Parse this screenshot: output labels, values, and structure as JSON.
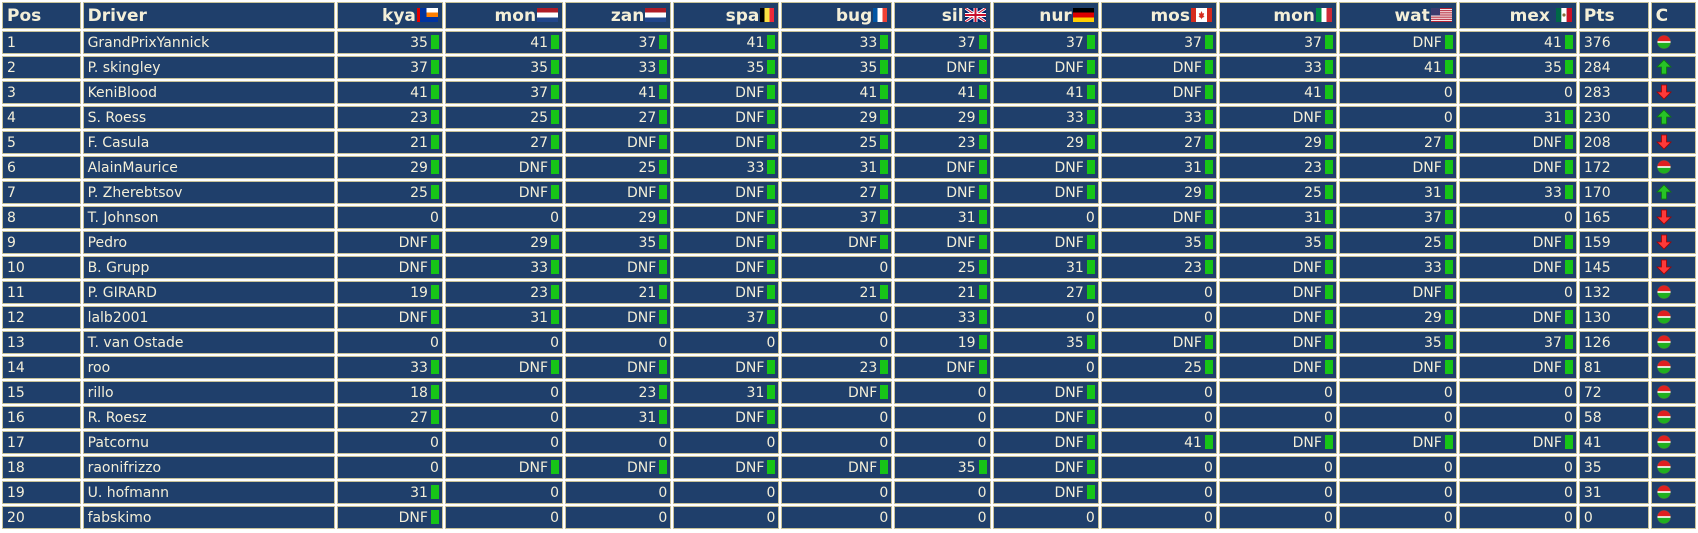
{
  "headers": {
    "pos": "Pos",
    "driver": "Driver",
    "races": [
      "kya",
      "mon",
      "zan",
      "spa",
      "bug",
      "sil",
      "nur",
      "mos",
      "mon",
      "wat",
      "mex"
    ],
    "pts": "Pts",
    "change": "C"
  },
  "race_flags": [
    "netherlands-antilles-flag",
    "netherlands-flag",
    "netherlands-flag",
    "belgium-flag",
    "france-flag",
    "united-kingdom-flag",
    "germany-flag",
    "canada-flag",
    "italy-flag",
    "united-states-flag",
    "mexico-flag"
  ],
  "rows": [
    {
      "pos": "1",
      "driver": "GrandPrixYannick",
      "results": [
        "35",
        "41",
        "37",
        "41",
        "33",
        "37",
        "37",
        "37",
        "37",
        "DNF",
        "41"
      ],
      "pts": "376",
      "change": "same"
    },
    {
      "pos": "2",
      "driver": "P. skingley",
      "results": [
        "37",
        "35",
        "33",
        "35",
        "35",
        "DNF",
        "DNF",
        "DNF",
        "33",
        "41",
        "35"
      ],
      "pts": "284",
      "change": "up"
    },
    {
      "pos": "3",
      "driver": "KeniBlood",
      "results": [
        "41",
        "37",
        "41",
        "DNF",
        "41",
        "41",
        "41",
        "DNF",
        "41",
        "0",
        "0"
      ],
      "pts": "283",
      "change": "down"
    },
    {
      "pos": "4",
      "driver": "S. Roess",
      "results": [
        "23",
        "25",
        "27",
        "DNF",
        "29",
        "29",
        "33",
        "33",
        "DNF",
        "0",
        "31"
      ],
      "pts": "230",
      "change": "up"
    },
    {
      "pos": "5",
      "driver": "F. Casula",
      "results": [
        "21",
        "27",
        "DNF",
        "DNF",
        "25",
        "23",
        "29",
        "27",
        "29",
        "27",
        "DNF"
      ],
      "pts": "208",
      "change": "down"
    },
    {
      "pos": "6",
      "driver": "AlainMaurice",
      "results": [
        "29",
        "DNF",
        "25",
        "33",
        "31",
        "DNF",
        "DNF",
        "31",
        "23",
        "DNF",
        "DNF"
      ],
      "pts": "172",
      "change": "same"
    },
    {
      "pos": "7",
      "driver": "P. Zherebtsov",
      "results": [
        "25",
        "DNF",
        "DNF",
        "DNF",
        "27",
        "DNF",
        "DNF",
        "29",
        "25",
        "31",
        "33"
      ],
      "pts": "170",
      "change": "up"
    },
    {
      "pos": "8",
      "driver": "T. Johnson",
      "results": [
        "0",
        "0",
        "29",
        "DNF",
        "37",
        "31",
        "0",
        "DNF",
        "31",
        "37",
        "0"
      ],
      "pts": "165",
      "change": "down"
    },
    {
      "pos": "9",
      "driver": "Pedro",
      "results": [
        "DNF",
        "29",
        "35",
        "DNF",
        "DNF",
        "DNF",
        "DNF",
        "35",
        "35",
        "25",
        "DNF"
      ],
      "pts": "159",
      "change": "down"
    },
    {
      "pos": "10",
      "driver": "B. Grupp",
      "results": [
        "DNF",
        "33",
        "DNF",
        "DNF",
        "0",
        "25",
        "31",
        "23",
        "DNF",
        "33",
        "DNF"
      ],
      "pts": "145",
      "change": "down"
    },
    {
      "pos": "11",
      "driver": "P. GIRARD",
      "results": [
        "19",
        "23",
        "21",
        "DNF",
        "21",
        "21",
        "27",
        "0",
        "DNF",
        "DNF",
        "0"
      ],
      "pts": "132",
      "change": "same"
    },
    {
      "pos": "12",
      "driver": "lalb2001",
      "results": [
        "DNF",
        "31",
        "DNF",
        "37",
        "0",
        "33",
        "0",
        "0",
        "DNF",
        "29",
        "DNF"
      ],
      "pts": "130",
      "change": "same"
    },
    {
      "pos": "13",
      "driver": "T. van Ostade",
      "results": [
        "0",
        "0",
        "0",
        "0",
        "0",
        "19",
        "35",
        "DNF",
        "DNF",
        "35",
        "37"
      ],
      "pts": "126",
      "change": "same"
    },
    {
      "pos": "14",
      "driver": "roo",
      "results": [
        "33",
        "DNF",
        "DNF",
        "DNF",
        "23",
        "DNF",
        "0",
        "25",
        "DNF",
        "DNF",
        "DNF"
      ],
      "pts": "81",
      "change": "same"
    },
    {
      "pos": "15",
      "driver": "rillo",
      "results": [
        "18",
        "0",
        "23",
        "31",
        "DNF",
        "0",
        "DNF",
        "0",
        "0",
        "0",
        "0"
      ],
      "pts": "72",
      "change": "same"
    },
    {
      "pos": "16",
      "driver": "R. Roesz",
      "results": [
        "27",
        "0",
        "31",
        "DNF",
        "0",
        "0",
        "DNF",
        "0",
        "0",
        "0",
        "0"
      ],
      "pts": "58",
      "change": "same"
    },
    {
      "pos": "17",
      "driver": "Patcornu",
      "results": [
        "0",
        "0",
        "0",
        "0",
        "0",
        "0",
        "DNF",
        "41",
        "DNF",
        "DNF",
        "DNF"
      ],
      "pts": "41",
      "change": "same"
    },
    {
      "pos": "18",
      "driver": "raonifrizzo",
      "results": [
        "0",
        "DNF",
        "DNF",
        "DNF",
        "DNF",
        "35",
        "DNF",
        "0",
        "0",
        "0",
        "0"
      ],
      "pts": "35",
      "change": "same"
    },
    {
      "pos": "19",
      "driver": "U. hofmann",
      "results": [
        "31",
        "0",
        "0",
        "0",
        "0",
        "0",
        "DNF",
        "0",
        "0",
        "0",
        "0"
      ],
      "pts": "31",
      "change": "same"
    },
    {
      "pos": "20",
      "driver": "fabskimo",
      "results": [
        "DNF",
        "0",
        "0",
        "0",
        "0",
        "0",
        "0",
        "0",
        "0",
        "0",
        "0"
      ],
      "pts": "0",
      "change": "same"
    }
  ],
  "colors": {
    "cell_bg": "#1f3f6b",
    "text": "#f4efd8",
    "border": "#c8c39a",
    "marker": "#17c417",
    "arrow_up": "#27c427",
    "arrow_down": "#ff3a3a"
  },
  "change_icons": {
    "up": "green-up-arrow-icon",
    "down": "red-down-arrow-icon",
    "same": "unchanged-ball-icon"
  }
}
